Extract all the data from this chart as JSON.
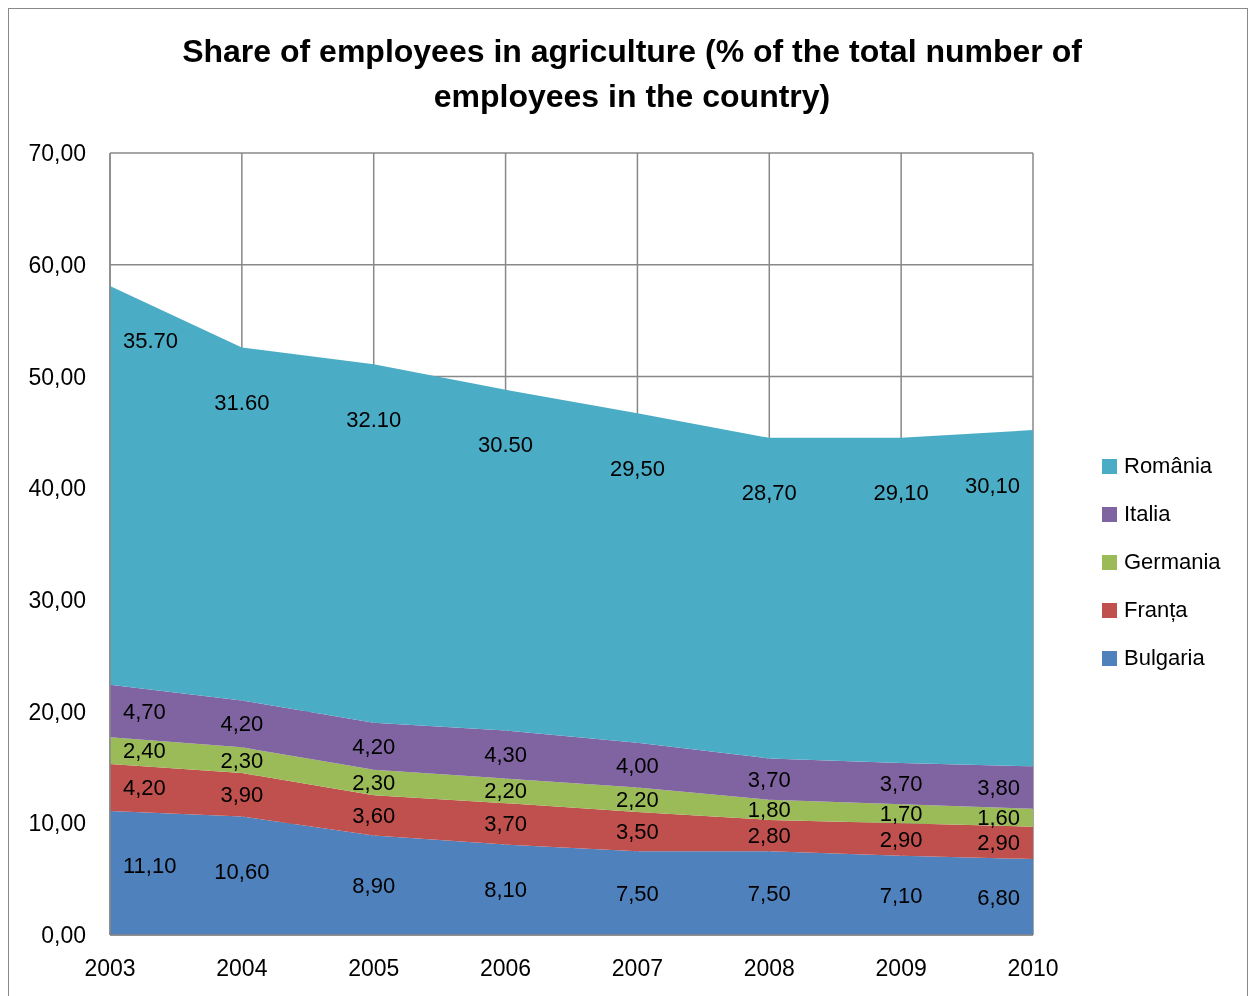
{
  "chart_data": {
    "type": "area",
    "title": "Share of employees in agriculture (% of the total number of employees in the country)",
    "categories": [
      "2003",
      "2004",
      "2005",
      "2006",
      "2007",
      "2008",
      "2009",
      "2010"
    ],
    "stacked": true,
    "series": [
      {
        "name": "Bulgaria",
        "color": "#4f81bd",
        "values": [
          11.1,
          10.6,
          8.9,
          8.1,
          7.5,
          7.5,
          7.1,
          6.8
        ],
        "value_labels": [
          "11,10",
          "10,60",
          "8,90",
          "8,10",
          "7,50",
          "7,50",
          "7,10",
          "6,80"
        ]
      },
      {
        "name": "Franța",
        "color": "#c0504d",
        "values": [
          4.2,
          3.9,
          3.6,
          3.7,
          3.5,
          2.8,
          2.9,
          2.9
        ],
        "value_labels": [
          "4,20",
          "3,90",
          "3,60",
          "3,70",
          "3,50",
          "2,80",
          "2,90",
          "2,90"
        ]
      },
      {
        "name": "Germania",
        "color": "#9bbb59",
        "values": [
          2.4,
          2.3,
          2.3,
          2.2,
          2.2,
          1.8,
          1.7,
          1.6
        ],
        "value_labels": [
          "2,40",
          "2,30",
          "2,30",
          "2,20",
          "2,20",
          "1,80",
          "1,70",
          "1,60"
        ]
      },
      {
        "name": "Italia",
        "color": "#8064a2",
        "values": [
          4.7,
          4.2,
          4.2,
          4.3,
          4.0,
          3.7,
          3.7,
          3.8
        ],
        "value_labels": [
          "4,70",
          "4,20",
          "4,20",
          "4,30",
          "4,00",
          "3,70",
          "3,70",
          "3,80"
        ]
      },
      {
        "name": "România",
        "color": "#4bacc6",
        "values": [
          35.7,
          31.6,
          32.1,
          30.5,
          29.5,
          28.7,
          29.1,
          30.1
        ],
        "value_labels": [
          "35.70",
          "31.60",
          "32.10",
          "30.50",
          "29,50",
          "28,70",
          "29,10",
          "30,10"
        ]
      }
    ],
    "ylim": [
      0,
      70
    ],
    "yticks": [
      {
        "value": 0,
        "label": "0,00"
      },
      {
        "value": 10,
        "label": "10,00"
      },
      {
        "value": 20,
        "label": "20,00"
      },
      {
        "value": 30,
        "label": "30,00"
      },
      {
        "value": 40,
        "label": "40,00"
      },
      {
        "value": 50,
        "label": "50,00"
      },
      {
        "value": 60,
        "label": "60,00"
      },
      {
        "value": 70,
        "label": "70,00"
      }
    ],
    "grid": true,
    "legend": "right"
  }
}
